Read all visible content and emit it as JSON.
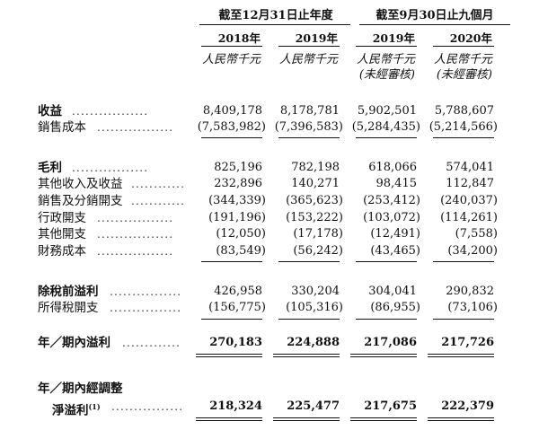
{
  "header": {
    "group_annual": "截至12月31日止年度",
    "group_nine_months": "截至9月30日止九個月",
    "years": [
      "2018年",
      "2019年",
      "2019年",
      "2020年"
    ],
    "unit_audited": "人民幣千元",
    "unit_unaudited_line1": "人民幣千元",
    "unit_unaudited_line2": "(未經審核)"
  },
  "rows": [
    {
      "label": "收益",
      "values": [
        "8,409,178",
        "8,178,781",
        "5,902,501",
        "5,788,607"
      ]
    },
    {
      "label": "銷售成本",
      "values": [
        "(7,583,982)",
        "(7,396,583)",
        "(5,284,435)",
        "(5,214,566)"
      ]
    },
    {
      "label": "毛利",
      "values": [
        "825,196",
        "782,198",
        "618,066",
        "574,041"
      ]
    },
    {
      "label": "其他收入及收益",
      "values": [
        "232,896",
        "140,271",
        "98,415",
        "112,847"
      ]
    },
    {
      "label": "銷售及分銷開支",
      "values": [
        "(344,339)",
        "(365,623)",
        "(253,412)",
        "(240,037)"
      ]
    },
    {
      "label": "行政開支",
      "values": [
        "(191,196)",
        "(153,222)",
        "(103,072)",
        "(114,261)"
      ]
    },
    {
      "label": "其他開支",
      "values": [
        "(12,050)",
        "(17,178)",
        "(12,491)",
        "(7,558)"
      ]
    },
    {
      "label": "財務成本",
      "values": [
        "(83,549)",
        "(56,242)",
        "(43,465)",
        "(34,200)"
      ]
    },
    {
      "label": "除稅前溢利",
      "values": [
        "426,958",
        "330,204",
        "304,041",
        "290,832"
      ]
    },
    {
      "label": "所得稅開支",
      "values": [
        "(156,775)",
        "(105,316)",
        "(86,955)",
        "(73,106)"
      ]
    },
    {
      "label": "年／期內溢利",
      "values": [
        "270,183",
        "224,888",
        "217,086",
        "217,726"
      ]
    },
    {
      "label_line1": "年／期內經調整",
      "label_line2": "淨溢利",
      "footnote": "(1)",
      "values": [
        "218,324",
        "225,477",
        "217,675",
        "222,379"
      ]
    }
  ],
  "dots": "................."
}
